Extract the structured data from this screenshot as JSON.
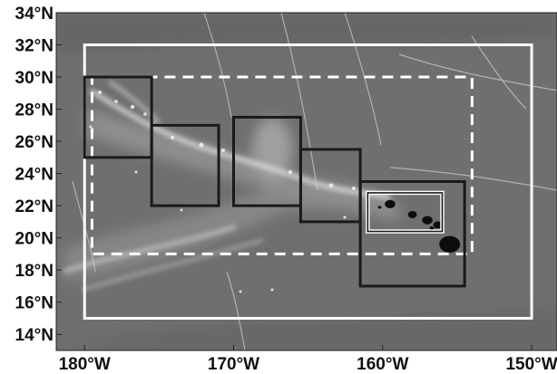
{
  "map": {
    "lon_range": [
      -181.9,
      -148.3
    ],
    "lat_range": [
      13.0,
      34.0
    ],
    "background_color": "#6f6f6f",
    "x_ticks": [
      {
        "value": -180,
        "label": "180°W"
      },
      {
        "value": -170,
        "label": "170°W"
      },
      {
        "value": -160,
        "label": "160°W"
      },
      {
        "value": -150,
        "label": "150°W"
      }
    ],
    "y_ticks": [
      {
        "value": 34,
        "label": "34°N"
      },
      {
        "value": 32,
        "label": "32°N"
      },
      {
        "value": 30,
        "label": "30°N"
      },
      {
        "value": 28,
        "label": "28°N"
      },
      {
        "value": 26,
        "label": "26°N"
      },
      {
        "value": 24,
        "label": "24°N"
      },
      {
        "value": 22,
        "label": "22°N"
      },
      {
        "value": 20,
        "label": "20°N"
      },
      {
        "value": 18,
        "label": "18°N"
      },
      {
        "value": 16,
        "label": "16°N"
      },
      {
        "value": 14,
        "label": "14°N"
      }
    ],
    "regions": [
      {
        "id": "outer-domain",
        "lon": [
          -180.0,
          -150.0
        ],
        "lat": [
          15.0,
          32.0
        ],
        "color": "#ffffff",
        "style": "solid"
      },
      {
        "id": "inner-domain",
        "lon": [
          -179.5,
          -154.0
        ],
        "lat": [
          19.0,
          30.0
        ],
        "color": "#ffffff",
        "style": "dashed"
      },
      {
        "id": "box-1",
        "lon": [
          -180.0,
          -175.5
        ],
        "lat": [
          25.0,
          30.0
        ],
        "color": "#1a1a1a",
        "style": "solid"
      },
      {
        "id": "box-2",
        "lon": [
          -175.5,
          -171.0
        ],
        "lat": [
          22.0,
          27.0
        ],
        "color": "#1a1a1a",
        "style": "solid"
      },
      {
        "id": "box-3",
        "lon": [
          -170.0,
          -165.5
        ],
        "lat": [
          22.0,
          27.5
        ],
        "color": "#1a1a1a",
        "style": "solid"
      },
      {
        "id": "box-4",
        "lon": [
          -165.5,
          -161.5
        ],
        "lat": [
          21.0,
          25.5
        ],
        "color": "#1a1a1a",
        "style": "solid"
      },
      {
        "id": "box-5",
        "lon": [
          -161.5,
          -154.5
        ],
        "lat": [
          17.0,
          23.5
        ],
        "color": "#1a1a1a",
        "style": "solid"
      },
      {
        "id": "box-6",
        "lon": [
          -161.0,
          -156.0
        ],
        "lat": [
          20.4,
          22.8
        ],
        "color": "#1a1a1a",
        "style": "double"
      }
    ],
    "islands": [
      {
        "lon": -159.5,
        "lat": 22.1,
        "r": 0.35
      },
      {
        "lon": -158.0,
        "lat": 21.45,
        "r": 0.3
      },
      {
        "lon": -157.0,
        "lat": 21.1,
        "r": 0.35
      },
      {
        "lon": -156.3,
        "lat": 20.8,
        "r": 0.3
      },
      {
        "lon": -155.5,
        "lat": 19.6,
        "r": 0.7
      },
      {
        "lon": -160.2,
        "lat": 21.9,
        "r": 0.12
      },
      {
        "lon": -156.7,
        "lat": 20.6,
        "r": 0.15
      }
    ]
  }
}
